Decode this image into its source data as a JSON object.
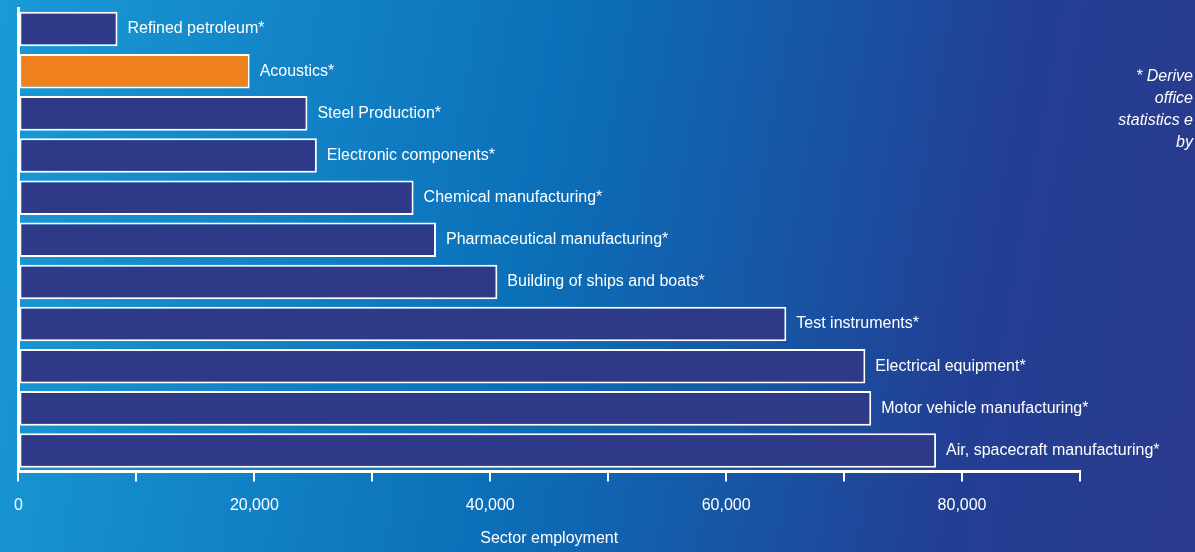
{
  "chart_data": {
    "type": "bar",
    "orientation": "horizontal",
    "xlabel": "Sector employment",
    "categories": [
      "Refined petroleum*",
      "Acoustics*",
      "Steel Production*",
      "Electronic components*",
      "Chemical manufacturing*",
      "Pharmaceutical manufacturing*",
      "Building of ships and boats*",
      "Test instruments*",
      "Electrical equipment*",
      "Motor vehicle manufacturing*",
      "Air, spacecraft manufacturing*"
    ],
    "values": [
      8400,
      19600,
      24500,
      25300,
      33500,
      35400,
      40600,
      65100,
      71800,
      72300,
      77800
    ],
    "colors": [
      "#2e3a87",
      "#f0821e",
      "#2e3a87",
      "#2e3a87",
      "#2e3a87",
      "#2e3a87",
      "#2e3a87",
      "#2e3a87",
      "#2e3a87",
      "#2e3a87",
      "#2e3a87"
    ],
    "xlim": [
      0,
      90000
    ],
    "xticks": [
      0,
      {
        "value": 10000,
        "label": null
      },
      {
        "value": 20000,
        "label": "20,000"
      },
      {
        "value": 30000,
        "label": null
      },
      {
        "value": 40000,
        "label": "40,000"
      },
      {
        "value": 50000,
        "label": null
      },
      {
        "value": 60000,
        "label": "60,000"
      },
      {
        "value": 70000,
        "label": null
      },
      {
        "value": 80000,
        "label": "80,000"
      },
      {
        "value": 90000,
        "label": null
      }
    ],
    "grid": false,
    "legend": false,
    "annotations": [
      "* Derive\noffice\nstatistics e\nby"
    ]
  }
}
